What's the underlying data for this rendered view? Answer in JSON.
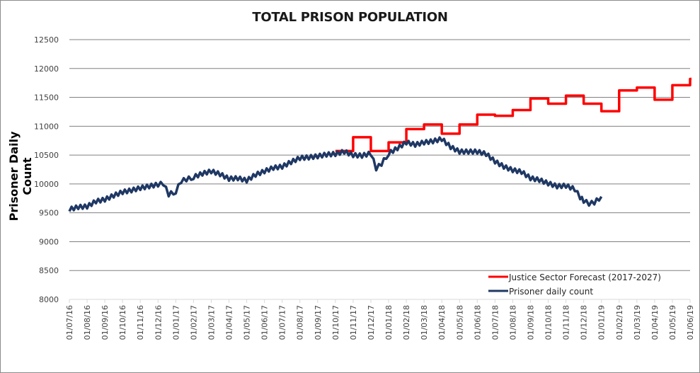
{
  "chart_data": {
    "type": "line",
    "title": "TOTAL PRISON POPULATION",
    "xlabel": "",
    "ylabel": "Prisoner Daily Count",
    "ylim": [
      8000,
      12500
    ],
    "yticks": [
      "12500",
      "12000",
      "11500",
      "11000",
      "10500",
      "10000",
      "9500",
      "9000",
      "8500",
      "8000"
    ],
    "ytick_values": [
      12500,
      12000,
      11500,
      11000,
      10500,
      10000,
      9500,
      9000,
      8500,
      8000
    ],
    "xtick_labels": [
      "01/07/16",
      "01/08/16",
      "01/09/16",
      "01/10/16",
      "01/11/16",
      "01/12/16",
      "01/01/17",
      "01/02/17",
      "01/03/17",
      "01/04/17",
      "01/05/17",
      "01/06/17",
      "01/07/17",
      "01/08/17",
      "01/09/17",
      "01/10/17",
      "01/11/17",
      "01/12/17",
      "01/01/18",
      "01/02/18",
      "01/03/18",
      "01/04/18",
      "01/05/18",
      "01/06/18",
      "01/07/18",
      "01/08/18",
      "01/09/18",
      "01/10/18",
      "01/11/18",
      "01/12/18",
      "01/01/19",
      "01/02/19",
      "01/03/19",
      "01/04/19",
      "01/05/19",
      "01/06/19"
    ],
    "x_unit": "months since 01/07/16",
    "grid": true,
    "legend_position": "bottom-right",
    "series": [
      {
        "name": "Justice Sector Forecast (2017-2027)",
        "color": "#ff0000",
        "style": "step",
        "x": [
          15.0,
          16.0,
          17.0,
          18.0,
          19.0,
          20.0,
          21.0,
          22.0,
          23.0,
          24.0,
          25.0,
          26.0,
          27.0,
          28.0,
          29.0,
          30.0,
          31.0,
          32.0,
          33.0,
          34.0,
          35.0
        ],
        "values": [
          10570,
          10810,
          10570,
          10720,
          10950,
          11030,
          10870,
          11030,
          11200,
          11180,
          11280,
          11480,
          11390,
          11530,
          11390,
          11260,
          11620,
          11670,
          11460,
          11710,
          11820
        ]
      },
      {
        "name": "Prisoner daily count",
        "color": "#1f3864",
        "style": "line",
        "x": [
          0.0,
          0.5,
          1.0,
          1.5,
          2.0,
          2.5,
          3.0,
          3.5,
          4.0,
          4.5,
          5.0,
          5.3,
          5.6,
          6.0,
          6.3,
          6.6,
          7.0,
          7.5,
          8.0,
          8.5,
          9.0,
          9.5,
          10.0,
          10.5,
          11.0,
          11.5,
          12.0,
          12.5,
          13.0,
          13.5,
          14.0,
          14.5,
          15.0,
          15.5,
          16.0,
          16.5,
          17.0,
          17.3,
          17.6,
          18.0,
          18.5,
          19.0,
          19.5,
          20.0,
          20.5,
          21.0,
          21.5,
          22.0,
          22.5,
          23.0,
          23.5,
          24.0,
          24.5,
          25.0,
          25.5,
          26.0,
          26.5,
          27.0,
          27.5,
          28.0,
          28.5,
          28.8,
          29.0,
          29.3,
          29.6,
          30.0
        ],
        "values": [
          9560,
          9600,
          9610,
          9700,
          9730,
          9800,
          9860,
          9890,
          9930,
          9960,
          9990,
          10010,
          9820,
          9870,
          10050,
          10080,
          10120,
          10180,
          10220,
          10170,
          10090,
          10100,
          10060,
          10160,
          10220,
          10280,
          10300,
          10380,
          10450,
          10460,
          10480,
          10510,
          10520,
          10560,
          10500,
          10490,
          10530,
          10270,
          10350,
          10530,
          10620,
          10720,
          10680,
          10720,
          10740,
          10780,
          10640,
          10560,
          10560,
          10560,
          10520,
          10390,
          10300,
          10240,
          10210,
          10100,
          10070,
          10010,
          9960,
          9970,
          9910,
          9770,
          9710,
          9660,
          9680,
          9780
        ]
      }
    ]
  }
}
